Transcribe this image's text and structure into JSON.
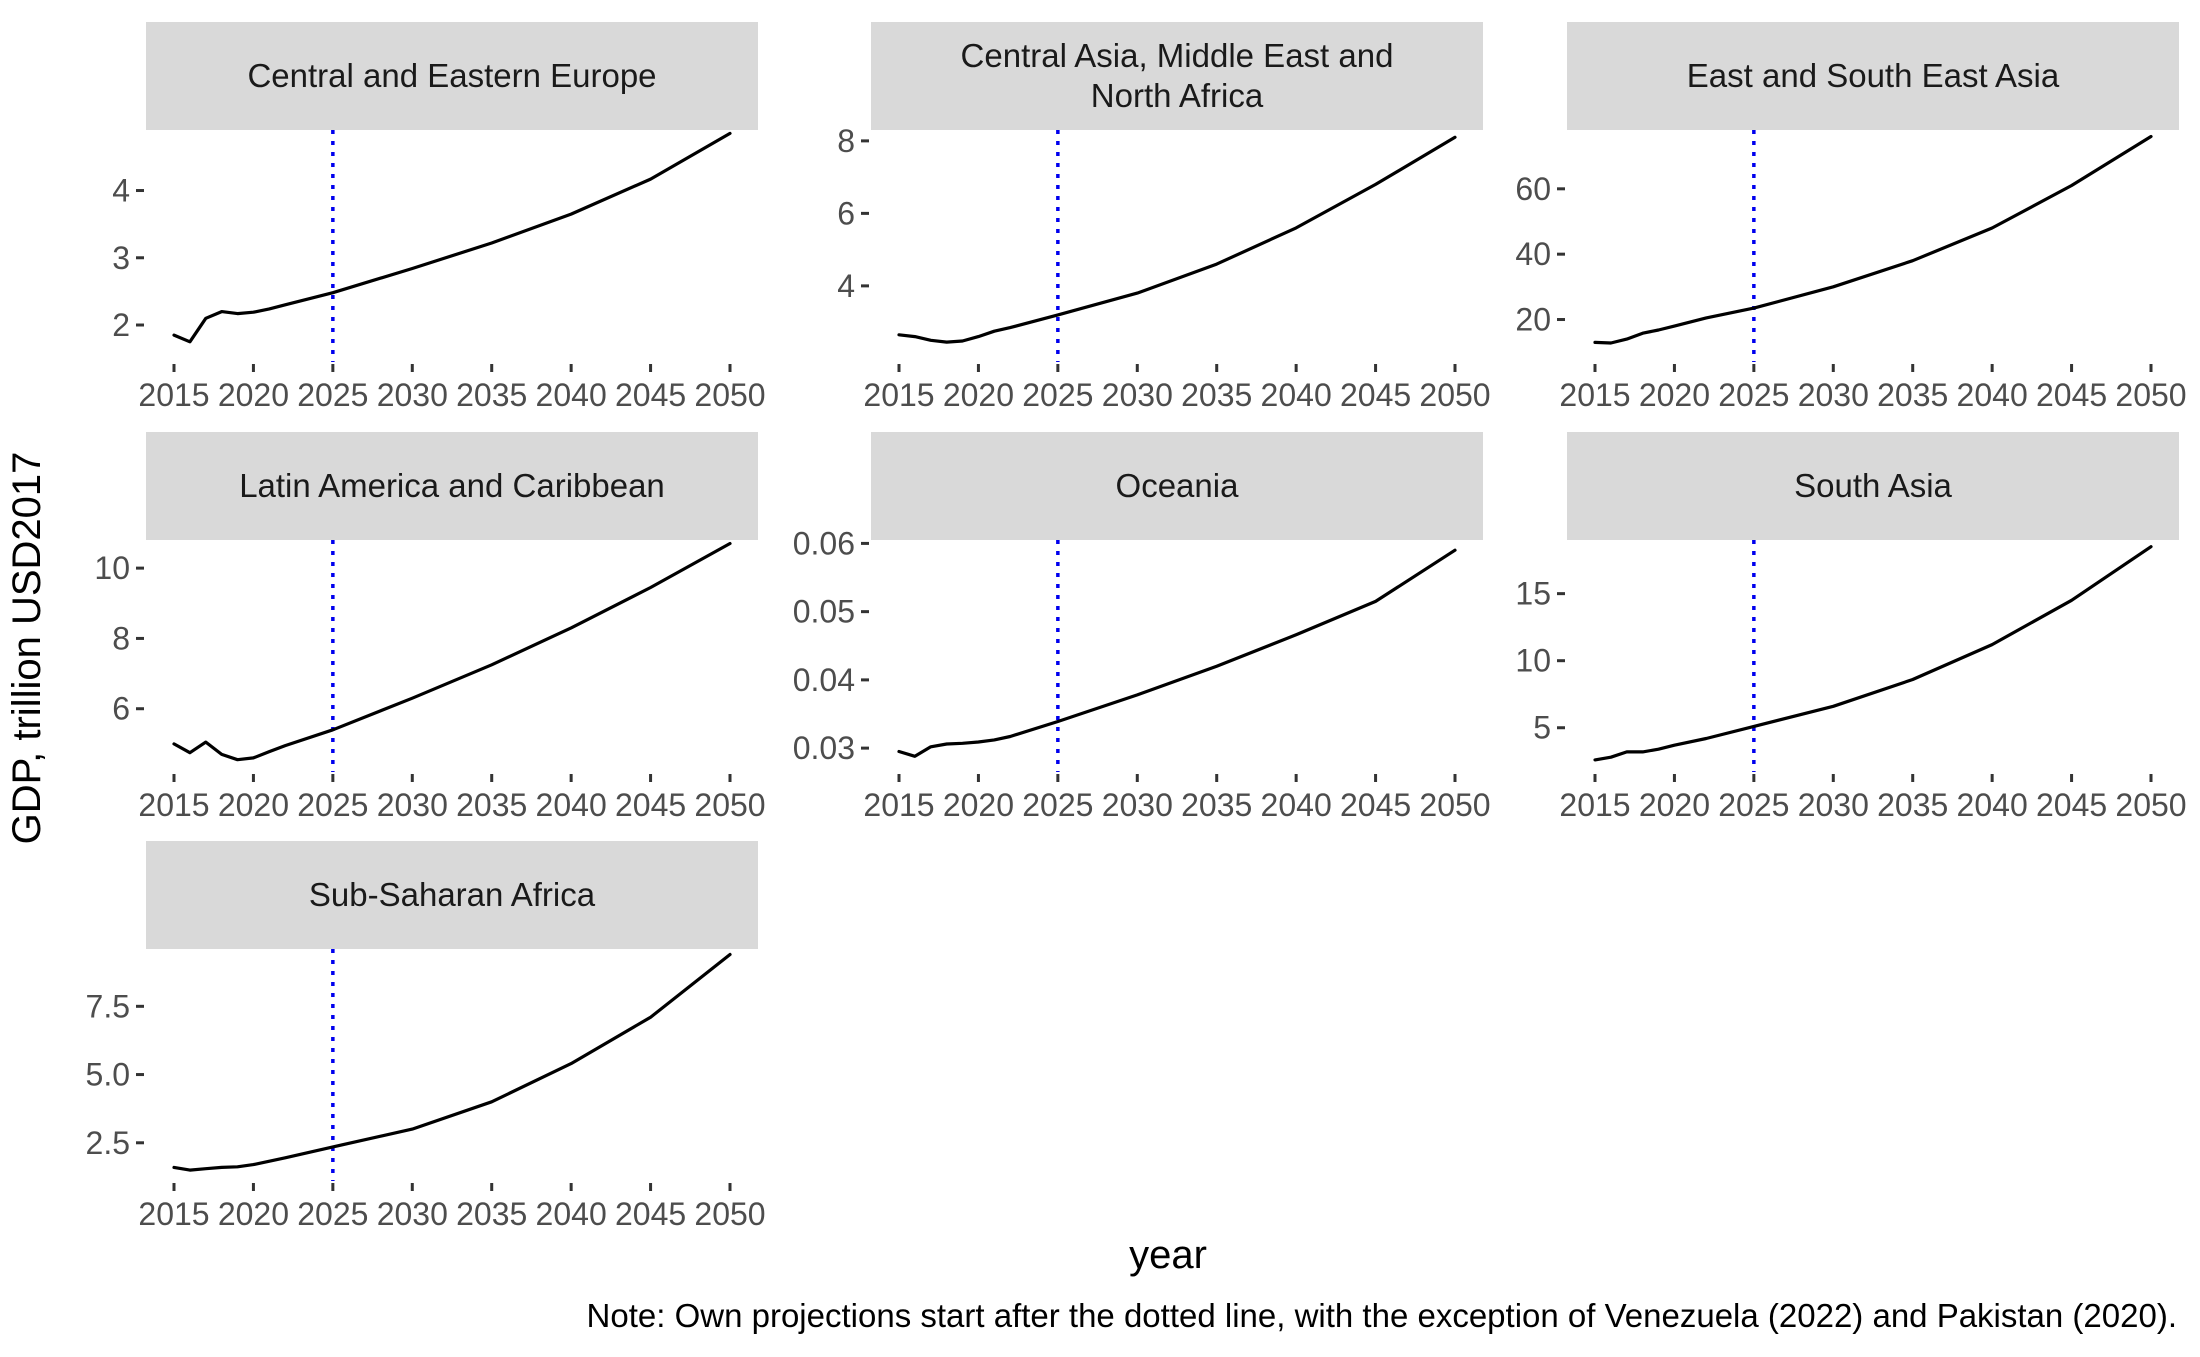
{
  "figure": {
    "xlabel": "year",
    "ylabel": "GDP, trillion USD2017",
    "note": "Note: Own projections start after the dotted line, with the exception of Venezuela (2022) and Pakistan (2020).",
    "x_tick_labels": [
      "2015",
      "2020",
      "2025",
      "2030",
      "2035",
      "2040",
      "2045",
      "2050"
    ]
  },
  "chart_data": [
    {
      "type": "line",
      "panel": "Central and Eastern Europe",
      "title_lines": [
        "Central and Eastern Europe"
      ],
      "xlim": [
        2015,
        2050
      ],
      "ylim": [
        1.45,
        4.9
      ],
      "yticks": [
        2,
        3,
        4
      ],
      "ytick_labels": [
        "2",
        "3",
        "4"
      ],
      "projection_start": 2025,
      "x": [
        2015,
        2016,
        2017,
        2018,
        2019,
        2020,
        2021,
        2022,
        2025,
        2030,
        2035,
        2040,
        2045,
        2050
      ],
      "y": [
        1.85,
        1.75,
        2.1,
        2.2,
        2.17,
        2.19,
        2.24,
        2.3,
        2.48,
        2.84,
        3.22,
        3.65,
        4.17,
        4.85
      ]
    },
    {
      "type": "line",
      "panel": "Central Asia, Middle East and North Africa",
      "title_lines": [
        "Central Asia, Middle East and",
        "North Africa"
      ],
      "xlim": [
        2015,
        2050
      ],
      "ylim": [
        1.9,
        8.3
      ],
      "yticks": [
        4,
        6,
        8
      ],
      "ytick_labels": [
        "4",
        "6",
        "8"
      ],
      "projection_start": 2025,
      "x": [
        2015,
        2016,
        2017,
        2018,
        2019,
        2020,
        2021,
        2022,
        2025,
        2030,
        2035,
        2040,
        2045,
        2050
      ],
      "y": [
        2.65,
        2.6,
        2.5,
        2.45,
        2.48,
        2.6,
        2.75,
        2.85,
        3.2,
        3.8,
        4.6,
        5.6,
        6.8,
        8.1
      ]
    },
    {
      "type": "line",
      "panel": "East and South East Asia",
      "title_lines": [
        "East and South East Asia"
      ],
      "xlim": [
        2015,
        2050
      ],
      "ylim": [
        7,
        78
      ],
      "yticks": [
        20,
        40,
        60
      ],
      "ytick_labels": [
        "20",
        "40",
        "60"
      ],
      "projection_start": 2025,
      "x": [
        2015,
        2016,
        2017,
        2018,
        2019,
        2020,
        2022,
        2025,
        2030,
        2035,
        2040,
        2045,
        2050
      ],
      "y": [
        13,
        12.8,
        14,
        15.8,
        16.8,
        18,
        20.5,
        23.5,
        30,
        38,
        48,
        61,
        76
      ]
    },
    {
      "type": "line",
      "panel": "Latin America and Caribbean",
      "title_lines": [
        "Latin America and Caribbean"
      ],
      "xlim": [
        2015,
        2050
      ],
      "ylim": [
        4.2,
        10.8
      ],
      "yticks": [
        6,
        8,
        10
      ],
      "ytick_labels": [
        "6",
        "8",
        "10"
      ],
      "projection_start": 2025,
      "x": [
        2015,
        2016,
        2017,
        2018,
        2019,
        2020,
        2021,
        2022,
        2025,
        2030,
        2035,
        2040,
        2045,
        2050
      ],
      "y": [
        5.0,
        4.75,
        5.05,
        4.7,
        4.55,
        4.6,
        4.78,
        4.95,
        5.4,
        6.3,
        7.25,
        8.3,
        9.45,
        10.7
      ]
    },
    {
      "type": "line",
      "panel": "Oceania",
      "title_lines": [
        "Oceania"
      ],
      "xlim": [
        2015,
        2050
      ],
      "ylim": [
        0.0265,
        0.0605
      ],
      "yticks": [
        0.03,
        0.04,
        0.05,
        0.06
      ],
      "ytick_labels": [
        "0.03",
        "0.04",
        "0.05",
        "0.06"
      ],
      "projection_start": 2025,
      "x": [
        2015,
        2016,
        2017,
        2018,
        2019,
        2020,
        2021,
        2022,
        2025,
        2030,
        2035,
        2040,
        2045,
        2050
      ],
      "y": [
        0.0295,
        0.0288,
        0.0302,
        0.0306,
        0.0307,
        0.0309,
        0.0312,
        0.0317,
        0.0339,
        0.0378,
        0.042,
        0.0466,
        0.0515,
        0.059
      ]
    },
    {
      "type": "line",
      "panel": "South Asia",
      "title_lines": [
        "South Asia"
      ],
      "xlim": [
        2015,
        2050
      ],
      "ylim": [
        1.7,
        19
      ],
      "yticks": [
        5,
        10,
        15
      ],
      "ytick_labels": [
        "5",
        "10",
        "15"
      ],
      "projection_start": 2025,
      "x": [
        2015,
        2016,
        2017,
        2018,
        2019,
        2020,
        2022,
        2025,
        2030,
        2035,
        2040,
        2045,
        2050
      ],
      "y": [
        2.6,
        2.8,
        3.2,
        3.2,
        3.4,
        3.7,
        4.2,
        5.1,
        6.6,
        8.6,
        11.2,
        14.5,
        18.5
      ]
    },
    {
      "type": "line",
      "panel": "Sub-Saharan Africa",
      "title_lines": [
        "Sub-Saharan Africa"
      ],
      "xlim": [
        2015,
        2050
      ],
      "ylim": [
        1.1,
        9.6
      ],
      "yticks": [
        2.5,
        5.0,
        7.5
      ],
      "ytick_labels": [
        "2.5",
        "5.0",
        "7.5"
      ],
      "projection_start": 2025,
      "x": [
        2015,
        2016,
        2017,
        2018,
        2019,
        2020,
        2022,
        2025,
        2030,
        2035,
        2040,
        2045,
        2050
      ],
      "y": [
        1.6,
        1.5,
        1.55,
        1.6,
        1.62,
        1.7,
        1.95,
        2.35,
        3.0,
        4.0,
        5.4,
        7.1,
        9.4
      ]
    }
  ],
  "colors": {
    "line": "#000000",
    "projection_marker": "#0000ee",
    "strip_fill": "#d9d9d9",
    "tick": "#333333"
  }
}
